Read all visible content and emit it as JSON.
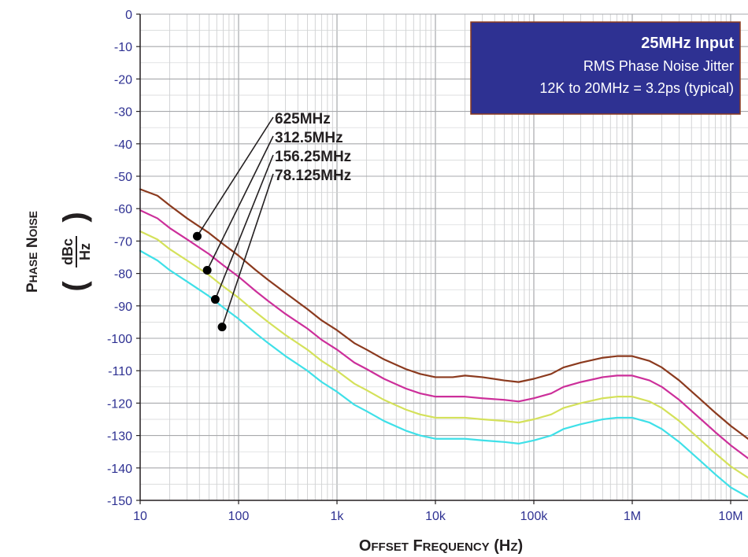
{
  "chart_data": {
    "type": "line",
    "x_scale": "log",
    "xlim": [
      10,
      15000000
    ],
    "ylim": [
      -150,
      0
    ],
    "grid": true,
    "xlabel": "Offset Frequency (Hz)",
    "ylabel_main": "Phase Noise",
    "ylabel_unit_num": "dBc",
    "ylabel_unit_den": "Hz",
    "x_ticks": [
      {
        "value": 10,
        "label": "10"
      },
      {
        "value": 100,
        "label": "100"
      },
      {
        "value": 1000,
        "label": "1k"
      },
      {
        "value": 10000,
        "label": "10k"
      },
      {
        "value": 100000,
        "label": "100k"
      },
      {
        "value": 1000000,
        "label": "1M"
      },
      {
        "value": 10000000,
        "label": "10M"
      }
    ],
    "y_ticks": [
      {
        "value": 0,
        "label": "0"
      },
      {
        "value": -10,
        "label": "-10"
      },
      {
        "value": -20,
        "label": "-20"
      },
      {
        "value": -30,
        "label": "-30"
      },
      {
        "value": -40,
        "label": "-40"
      },
      {
        "value": -50,
        "label": "-50"
      },
      {
        "value": -60,
        "label": "-60"
      },
      {
        "value": -70,
        "label": "-70"
      },
      {
        "value": -80,
        "label": "-80"
      },
      {
        "value": -90,
        "label": "-90"
      },
      {
        "value": -100,
        "label": "-100"
      },
      {
        "value": -110,
        "label": "-110"
      },
      {
        "value": -120,
        "label": "-120"
      },
      {
        "value": -130,
        "label": "-130"
      },
      {
        "value": -140,
        "label": "-140"
      },
      {
        "value": -150,
        "label": "-150"
      }
    ],
    "series": [
      {
        "name": "625MHz",
        "color": "#8b3a1e",
        "x": [
          10,
          15,
          20,
          30,
          50,
          70,
          100,
          150,
          200,
          300,
          500,
          700,
          1000,
          1500,
          2000,
          3000,
          5000,
          7000,
          10000,
          15000,
          20000,
          30000,
          50000,
          70000,
          100000,
          150000,
          200000,
          300000,
          500000,
          700000,
          1000000,
          1500000,
          2000000,
          3000000,
          5000000,
          7000000,
          10000000,
          15000000
        ],
        "y": [
          -54,
          -56,
          -59,
          -63,
          -67.5,
          -71,
          -74.5,
          -79,
          -82,
          -86,
          -91,
          -94.5,
          -97.5,
          -101.5,
          -103.5,
          -106.5,
          -109.5,
          -111,
          -112,
          -112,
          -111.5,
          -112,
          -113,
          -113.5,
          -112.5,
          -111,
          -109,
          -107.5,
          -106,
          -105.5,
          -105.5,
          -107,
          -109,
          -113,
          -119,
          -123,
          -127,
          -131
        ]
      },
      {
        "name": "312.5MHz",
        "color": "#cc2f9a",
        "x": [
          10,
          15,
          20,
          30,
          50,
          70,
          100,
          150,
          200,
          300,
          500,
          700,
          1000,
          1500,
          2000,
          3000,
          5000,
          7000,
          10000,
          15000,
          20000,
          30000,
          50000,
          70000,
          100000,
          150000,
          200000,
          300000,
          500000,
          700000,
          1000000,
          1500000,
          2000000,
          3000000,
          5000000,
          7000000,
          10000000,
          15000000
        ],
        "y": [
          -60.5,
          -63,
          -66,
          -69.5,
          -74,
          -77.5,
          -81,
          -85.5,
          -88.5,
          -92.5,
          -97,
          -100.5,
          -103.5,
          -107.5,
          -109.5,
          -112.5,
          -115.5,
          -117,
          -118,
          -118,
          -118,
          -118.5,
          -119,
          -119.5,
          -118.5,
          -117,
          -115,
          -113.5,
          -112,
          -111.5,
          -111.5,
          -113,
          -115,
          -119,
          -125,
          -129,
          -133,
          -137
        ]
      },
      {
        "name": "156.25MHz",
        "color": "#d4e15a",
        "x": [
          10,
          15,
          20,
          30,
          50,
          70,
          100,
          150,
          200,
          300,
          500,
          700,
          1000,
          1500,
          2000,
          3000,
          5000,
          7000,
          10000,
          15000,
          20000,
          30000,
          50000,
          70000,
          100000,
          150000,
          200000,
          300000,
          500000,
          700000,
          1000000,
          1500000,
          2000000,
          3000000,
          5000000,
          7000000,
          10000000,
          15000000
        ],
        "y": [
          -67,
          -69.5,
          -72.5,
          -76,
          -80.5,
          -84,
          -87.5,
          -92,
          -95,
          -99,
          -103.5,
          -107,
          -110,
          -114,
          -116,
          -119,
          -122,
          -123.5,
          -124.5,
          -124.5,
          -124.5,
          -125,
          -125.5,
          -126,
          -125,
          -123.5,
          -121.5,
          -120,
          -118.5,
          -118,
          -118,
          -119.5,
          -121.5,
          -125.5,
          -131.5,
          -135.5,
          -139.5,
          -143
        ]
      },
      {
        "name": "78.125MHz",
        "color": "#3fe0e8",
        "x": [
          10,
          15,
          20,
          30,
          50,
          70,
          100,
          150,
          200,
          300,
          500,
          700,
          1000,
          1500,
          2000,
          3000,
          5000,
          7000,
          10000,
          15000,
          20000,
          30000,
          50000,
          70000,
          100000,
          150000,
          200000,
          300000,
          500000,
          700000,
          1000000,
          1500000,
          2000000,
          3000000,
          5000000,
          7000000,
          10000000,
          15000000
        ],
        "y": [
          -73,
          -76,
          -79,
          -82.5,
          -87,
          -90.5,
          -94,
          -98.5,
          -101.5,
          -105.5,
          -110,
          -113.5,
          -116.5,
          -120.5,
          -122.5,
          -125.5,
          -128.5,
          -130,
          -131,
          -131,
          -131,
          -131.5,
          -132,
          -132.5,
          -131.5,
          -130,
          -128,
          -126.5,
          -125,
          -124.5,
          -124.5,
          -126,
          -128,
          -132,
          -138,
          -142,
          -146,
          -149
        ]
      }
    ],
    "annotations": [
      {
        "label": "625MHz",
        "point_x": 38,
        "point_y": -68.5
      },
      {
        "label": "312.5MHz",
        "point_x": 48,
        "point_y": -79
      },
      {
        "label": "156.25MHz",
        "point_x": 58,
        "point_y": -88
      },
      {
        "label": "78.125MHz",
        "point_x": 68,
        "point_y": -96.5
      }
    ],
    "info_box": {
      "title": "25MHz Input",
      "line1": "RMS Phase Noise Jitter",
      "line2": "12K to 20MHz = 3.2ps (typical)",
      "fill_color": "#2e3192",
      "border_color": "#8b3a1e",
      "placement": "top-right"
    }
  }
}
